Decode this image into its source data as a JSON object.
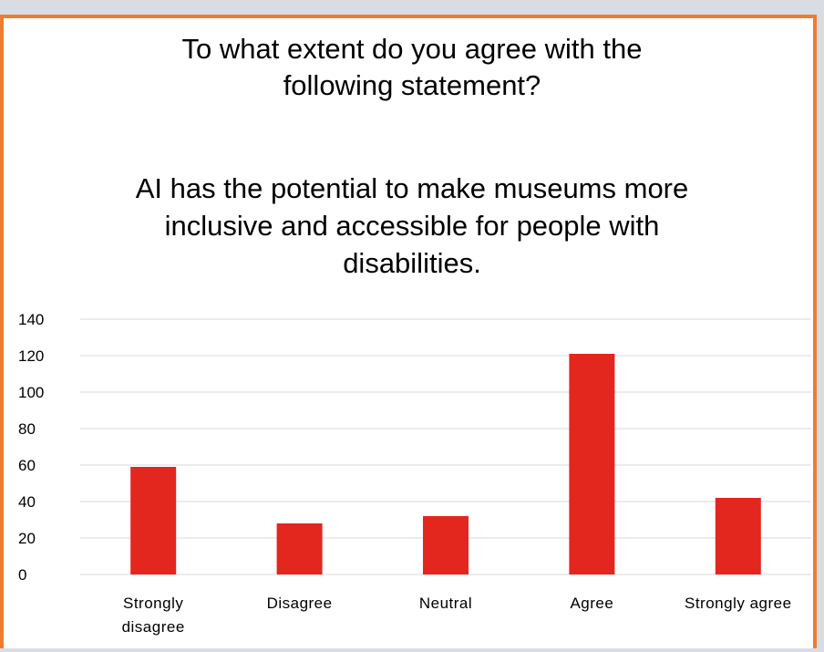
{
  "chart_data": {
    "type": "bar",
    "title_lines": [
      "To what extent do you agree with the",
      "following statement?"
    ],
    "statement_lines": [
      "AI has the potential to make museums more",
      "inclusive and accessible for people with",
      "disabilities."
    ],
    "categories": [
      [
        "Strongly",
        "disagree"
      ],
      [
        "Disagree"
      ],
      [
        "Neutral"
      ],
      [
        "Agree"
      ],
      [
        "Strongly agree"
      ]
    ],
    "values": [
      59,
      28,
      32,
      121,
      42
    ],
    "ylim": [
      0,
      140
    ],
    "yticks": [
      0,
      20,
      40,
      60,
      80,
      100,
      120,
      140
    ],
    "grid": true,
    "bar_color": "#e3261e",
    "gridline_color": "#d9d9d9"
  },
  "frame_color": "#ed7d31"
}
